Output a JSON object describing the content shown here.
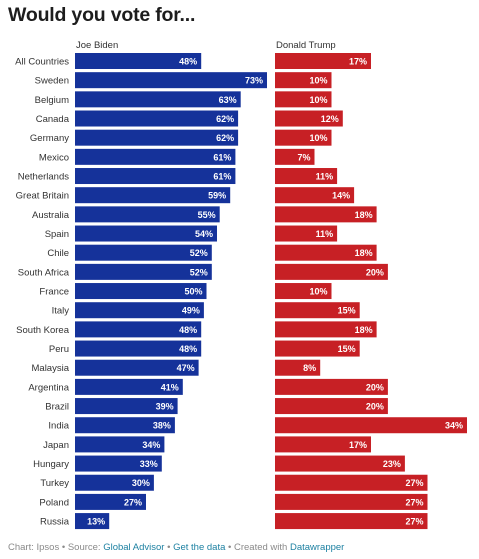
{
  "chart_data": {
    "type": "bar",
    "title": "Would you vote for...",
    "categories": [
      "All Countries",
      "Sweden",
      "Belgium",
      "Canada",
      "Germany",
      "Mexico",
      "Netherlands",
      "Great Britain",
      "Australia",
      "Spain",
      "Chile",
      "South Africa",
      "France",
      "Italy",
      "South Korea",
      "Peru",
      "Malaysia",
      "Argentina",
      "Brazil",
      "India",
      "Japan",
      "Hungary",
      "Turkey",
      "Poland",
      "Russia"
    ],
    "series": [
      {
        "name": "Joe Biden",
        "color": "#15329a",
        "values": [
          48,
          73,
          63,
          62,
          62,
          61,
          61,
          59,
          55,
          54,
          52,
          52,
          50,
          49,
          48,
          48,
          47,
          41,
          39,
          38,
          34,
          33,
          30,
          27,
          13
        ]
      },
      {
        "name": "Donald Trump",
        "color": "#c72025",
        "values": [
          17,
          10,
          10,
          12,
          10,
          7,
          11,
          14,
          18,
          11,
          18,
          20,
          10,
          15,
          18,
          15,
          8,
          20,
          20,
          34,
          17,
          23,
          27,
          27,
          27
        ]
      }
    ],
    "value_suffix": "%",
    "xlim": [
      0,
      73
    ],
    "grid": false,
    "legend": "none"
  },
  "footer": {
    "prefix": "Chart: Ipsos • Source: ",
    "source_link": "Global Advisor",
    "sep1": " • ",
    "data_link": "Get the data",
    "sep2": " • Created with ",
    "tool_link": "Datawrapper"
  }
}
